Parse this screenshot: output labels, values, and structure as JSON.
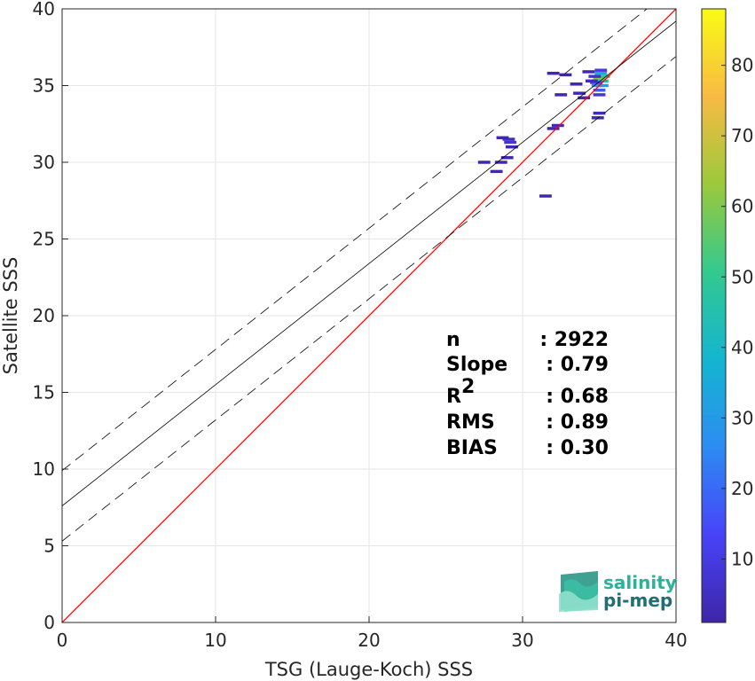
{
  "chart_data": {
    "type": "heatmap",
    "xlabel": "TSG (Lauge-Koch) SSS",
    "ylabel": "Satellite SSS",
    "xlim": [
      0,
      40
    ],
    "ylim": [
      0,
      40
    ],
    "xticks": [
      "0",
      "10",
      "20",
      "30",
      "40"
    ],
    "yticks": [
      "0",
      "5",
      "10",
      "15",
      "20",
      "25",
      "30",
      "35",
      "40"
    ],
    "grid": true,
    "colorbar": {
      "range": [
        1,
        88
      ],
      "ticks": [
        "10",
        "20",
        "30",
        "40",
        "50",
        "60",
        "70",
        "80"
      ],
      "colormap": "parula",
      "colors": [
        "#3e26a8",
        "#4743f8",
        "#2d8cf3",
        "#14b5d0",
        "#33c98f",
        "#9bc93b",
        "#f8ba43",
        "#f9fb15"
      ]
    },
    "lines": [
      {
        "name": "one-to-one",
        "slope": 1.0,
        "intercept": 0.0,
        "color": "#ff0000",
        "style": "solid"
      },
      {
        "name": "fit",
        "slope": 0.79,
        "intercept": 7.6,
        "color": "#000000",
        "style": "solid"
      },
      {
        "name": "fit-upper",
        "slope": 0.79,
        "intercept": 9.9,
        "color": "#000000",
        "style": "dashed"
      },
      {
        "name": "fit-lower",
        "slope": 0.79,
        "intercept": 5.3,
        "color": "#000000",
        "style": "dashed"
      }
    ],
    "cells": [
      {
        "x": 35.0,
        "y": 35.5,
        "count": 60
      },
      {
        "x": 35.2,
        "y": 35.3,
        "count": 45
      },
      {
        "x": 35.1,
        "y": 35.8,
        "count": 35
      },
      {
        "x": 34.9,
        "y": 35.0,
        "count": 25
      },
      {
        "x": 35.3,
        "y": 35.6,
        "count": 50
      },
      {
        "x": 35.0,
        "y": 34.7,
        "count": 18
      },
      {
        "x": 34.8,
        "y": 35.2,
        "count": 12
      },
      {
        "x": 35.2,
        "y": 35.0,
        "count": 30
      },
      {
        "x": 35.0,
        "y": 34.4,
        "count": 8
      },
      {
        "x": 35.1,
        "y": 36.0,
        "count": 10
      },
      {
        "x": 34.7,
        "y": 35.6,
        "count": 6
      },
      {
        "x": 35.0,
        "y": 33.2,
        "count": 3
      },
      {
        "x": 34.9,
        "y": 32.9,
        "count": 2
      },
      {
        "x": 32.0,
        "y": 35.8,
        "count": 2
      },
      {
        "x": 32.8,
        "y": 35.7,
        "count": 1
      },
      {
        "x": 34.3,
        "y": 35.9,
        "count": 2
      },
      {
        "x": 33.5,
        "y": 35.1,
        "count": 2
      },
      {
        "x": 34.0,
        "y": 34.2,
        "count": 2
      },
      {
        "x": 32.5,
        "y": 34.4,
        "count": 2
      },
      {
        "x": 32.3,
        "y": 32.4,
        "count": 3
      },
      {
        "x": 32.0,
        "y": 32.2,
        "count": 2
      },
      {
        "x": 29.1,
        "y": 31.5,
        "count": 5
      },
      {
        "x": 29.2,
        "y": 31.3,
        "count": 8
      },
      {
        "x": 28.7,
        "y": 31.6,
        "count": 2
      },
      {
        "x": 29.3,
        "y": 31.0,
        "count": 2
      },
      {
        "x": 29.0,
        "y": 30.3,
        "count": 2
      },
      {
        "x": 28.6,
        "y": 30.0,
        "count": 2
      },
      {
        "x": 27.5,
        "y": 30.0,
        "count": 1
      },
      {
        "x": 28.3,
        "y": 29.4,
        "count": 2
      },
      {
        "x": 31.5,
        "y": 27.8,
        "count": 2
      },
      {
        "x": 33.7,
        "y": 34.5,
        "count": 2
      },
      {
        "x": 34.5,
        "y": 35.3,
        "count": 3
      }
    ]
  },
  "stats": {
    "rows": [
      {
        "label": "n",
        "sup": "",
        "value": ": 2922"
      },
      {
        "label": "Slope",
        "sup": "",
        "value": ": 0.79"
      },
      {
        "label": "R",
        "sup": "2",
        "value": ": 0.68"
      },
      {
        "label": "RMS",
        "sup": "",
        "value": ": 0.89"
      },
      {
        "label": "BIAS",
        "sup": "",
        "value": ": 0.30"
      }
    ]
  },
  "logo": {
    "line1": "salinity",
    "line2": "pi-mep",
    "color1": "#2bb39a",
    "color2": "#1f6f73"
  }
}
